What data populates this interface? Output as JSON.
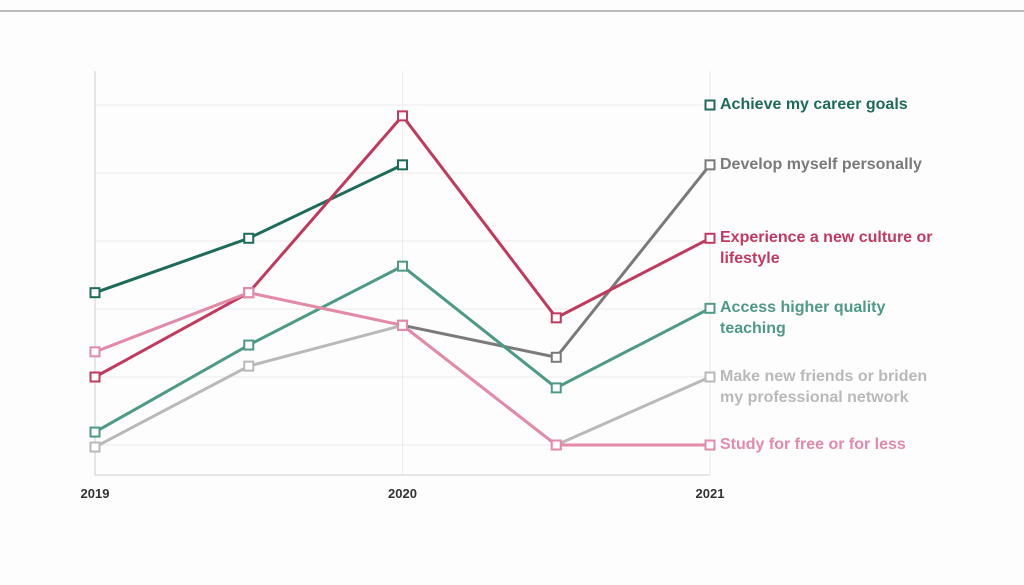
{
  "chart_data": {
    "type": "line",
    "x": [
      2019,
      2019.5,
      2020,
      2020.5,
      2021
    ],
    "xlim": [
      2019,
      2021
    ],
    "xticks": [
      2019,
      2020,
      2021
    ],
    "ylim": [
      6.5,
      0.5
    ],
    "yticks": [
      1,
      2,
      3,
      4,
      5,
      6
    ],
    "grid": true,
    "series": [
      {
        "name": "Achieve my career goals",
        "color": "#1d6b58",
        "values": [
          3.76,
          2.96,
          1.88,
          null,
          1.0
        ]
      },
      {
        "name": "Develop myself personally",
        "color": "#7a7a7a",
        "values": [
          null,
          null,
          4.24,
          4.71,
          1.88
        ]
      },
      {
        "name": "Experience a new culture or lifestyle",
        "color": "#c2395f",
        "values": [
          5.0,
          3.76,
          1.16,
          4.13,
          2.96
        ]
      },
      {
        "name": "Access higher quality teaching",
        "color": "#4f9a87",
        "values": [
          5.81,
          4.53,
          3.37,
          5.16,
          3.99
        ]
      },
      {
        "name": "Make new friends or briden my professional network",
        "color": "#b9b9b9",
        "values": [
          6.03,
          4.84,
          4.24,
          6.0,
          5.0
        ]
      },
      {
        "name": "Study for free or for less",
        "color": "#e38aa6",
        "values": [
          4.63,
          3.76,
          4.24,
          6.0,
          6.0
        ]
      }
    ]
  }
}
